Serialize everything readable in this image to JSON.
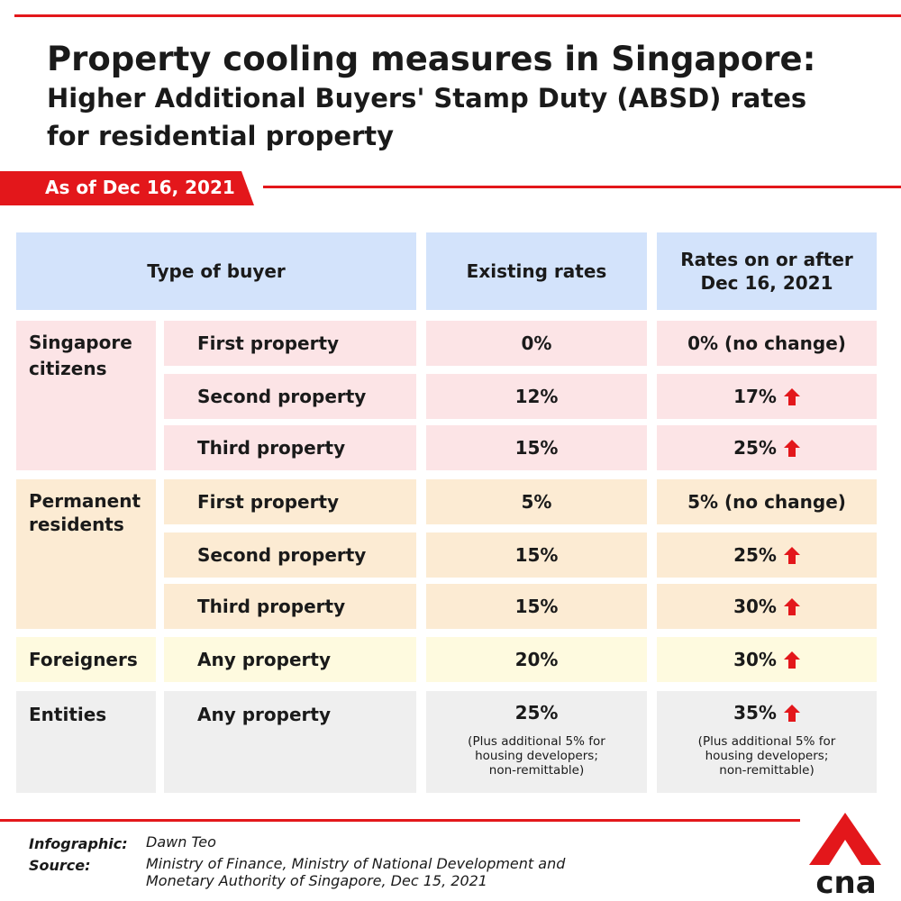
{
  "title_line1": "Property cooling measures in Singapore:",
  "title_line2": "Higher Additional Buyers' Stamp Duty (ABSD) rates",
  "title_line3": "for residential property",
  "date_label": "As of Dec 16, 2021",
  "table": {
    "headers": {
      "buyer": "Type of buyer",
      "existing": "Existing rates",
      "new_line1": "Rates on or after",
      "new_line2": "Dec 16, 2021"
    },
    "groups": {
      "citizens": {
        "label_line1": "Singapore",
        "label_line2": "citizens",
        "rows": [
          {
            "property": "First property",
            "existing": "0%",
            "new": "0% (no change)"
          },
          {
            "property": "Second property",
            "existing": "12%",
            "new": "17%"
          },
          {
            "property": "Third property",
            "existing": "15%",
            "new": "25%"
          }
        ]
      },
      "pr": {
        "label_line1": "Permanent",
        "label_line2": "residents",
        "rows": [
          {
            "property": "First property",
            "existing": "5%",
            "new": "5% (no change)"
          },
          {
            "property": "Second property",
            "existing": "15%",
            "new": "25%"
          },
          {
            "property": "Third property",
            "existing": "15%",
            "new": "30%"
          }
        ]
      },
      "foreigners": {
        "label": "Foreigners",
        "rows": [
          {
            "property": "Any property",
            "existing": "20%",
            "new": "30%"
          }
        ]
      },
      "entities": {
        "label": "Entities",
        "rows": [
          {
            "property": "Any property",
            "existing": "25%",
            "new": "35%"
          }
        ],
        "note_line1": "(Plus additional 5% for",
        "note_line2": "housing developers;",
        "note_line3": "non-remittable)"
      }
    }
  },
  "colors": {
    "accent": "#e3171b",
    "header": "#d3e3fb",
    "citizens": "#fce4e6",
    "pr": "#fcebd3",
    "foreigners": "#fefadf",
    "entities": "#efefef"
  },
  "footer": {
    "infographic_label": "Infographic:",
    "infographic_value": "Dawn Teo",
    "source_label": "Source:",
    "source_line1": "Ministry of Finance, Ministry of National Development and",
    "source_line2": "Monetary Authority of Singapore, Dec 15, 2021"
  },
  "logo": {
    "text": "cna",
    "icon": "cna-logo-icon"
  },
  "icons": {
    "increase": "up-arrow-icon"
  }
}
